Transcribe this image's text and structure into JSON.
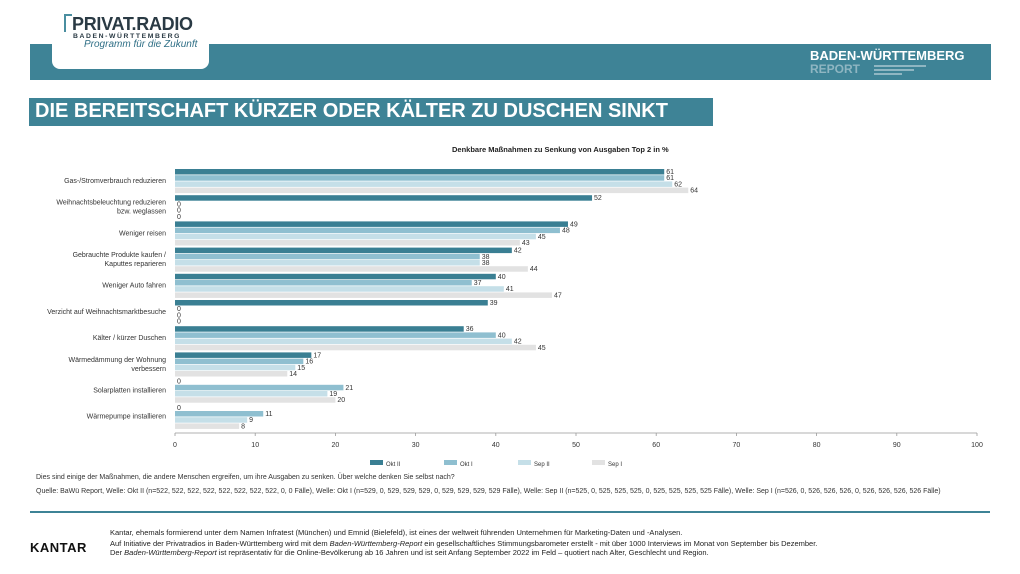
{
  "header": {
    "logo_name": "PRIVAT.RADIO",
    "logo_region": "BADEN-WÜRTTEMBERG",
    "logo_tagline": "Programm für die Zukunft",
    "report_title": "BADEN-WÜRTTEMBERG",
    "report_subtitle": "REPORT",
    "band_color": "#3e8396"
  },
  "headline": "DIE BEREITSCHAFT KÜRZER ODER KÄLTER ZU DUSCHEN SINKT",
  "chart_data": {
    "type": "bar",
    "orientation": "horizontal",
    "title": "Denkbare Maßnahmen zu Senkung von Ausgaben Top 2 in %",
    "categories": [
      "Gas-/Stromverbrauch reduzieren",
      "Weihnachtsbeleuchtung reduzieren bzw. weglassen",
      "Weniger reisen",
      "Gebrauchte Produkte kaufen / Kaputtes reparieren",
      "Weniger Auto fahren",
      "Verzicht auf Weihnachtsmarktbesuche",
      "Kälter / kürzer Duschen",
      "Wärmedämmung der Wohnung verbessern",
      "Solarplatten installieren",
      "Wärmepumpe installieren"
    ],
    "category_lines": [
      [
        "Gas-/Stromverbrauch reduzieren"
      ],
      [
        "Weihnachtsbeleuchtung reduzieren",
        "bzw. weglassen"
      ],
      [
        "Weniger reisen"
      ],
      [
        "Gebrauchte Produkte kaufen /",
        "Kaputtes reparieren"
      ],
      [
        "Weniger Auto fahren"
      ],
      [
        "Verzicht auf Weihnachtsmarktbesuche"
      ],
      [
        "Kälter / kürzer Duschen"
      ],
      [
        "Wärmedämmung der Wohnung",
        "verbessern"
      ],
      [
        "Solarplatten installieren"
      ],
      [
        "Wärmepumpe installieren"
      ]
    ],
    "series": [
      {
        "name": "Okt II",
        "color": "#3a7f93",
        "values": [
          61,
          52,
          49,
          42,
          40,
          39,
          36,
          17,
          0,
          0
        ]
      },
      {
        "name": "Okt I",
        "color": "#8fbfd0",
        "values": [
          61,
          0,
          48,
          38,
          37,
          0,
          40,
          16,
          21,
          11
        ]
      },
      {
        "name": "Sep II",
        "color": "#c5dfe8",
        "values": [
          62,
          0,
          45,
          38,
          41,
          0,
          42,
          15,
          19,
          9
        ]
      },
      {
        "name": "Sep I",
        "color": "#e2e2e2",
        "values": [
          64,
          0,
          43,
          44,
          47,
          0,
          45,
          14,
          20,
          8
        ]
      }
    ],
    "xlim": [
      0,
      100
    ],
    "xticks": [
      0,
      10,
      20,
      30,
      40,
      50,
      60,
      70,
      80,
      90,
      100
    ],
    "grid": false,
    "legend_position": "bottom"
  },
  "note": "Dies sind einige der Maßnahmen, die andere Menschen ergreifen, um ihre Ausgaben zu senken. Über welche denken Sie selbst nach?",
  "source": "Quelle: BaWü Report, Welle: Okt II (n=522, 522, 522, 522, 522, 522, 522, 522, 0, 0 Fälle), Welle: Okt I (n=529, 0, 529, 529, 529, 0, 529, 529, 529, 529 Fälle), Welle: Sep II (n=525, 0, 525, 525, 525, 0, 525, 525, 525, 525 Fälle), Welle: Sep I (n=526, 0, 526, 526, 526, 0, 526, 526, 526, 526 Fälle)",
  "footer": {
    "logo": "KANTAR",
    "line1": "Kantar, ehemals formierend unter dem Namen Infratest (München) und Emnid (Bielefeld), ist eines der weltweit führenden Unternehmen für Marketing-Daten und -Analysen.",
    "line2_a": "Auf Initiative der Privatradios in Baden-Württemberg wird mit dem ",
    "line2_b": "Baden-Württemberg-Report",
    "line2_c": " ein gesellschaftliches Stimmungsbarometer erstellt - mit über 1000 Interviews im Monat von September bis Dezember.",
    "line3_a": "Der ",
    "line3_b": "Baden-Württemberg-Report",
    "line3_c": " ist repräsentativ für die Online-Bevölkerung ab 16 Jahren und ist seit Anfang September 2022 im Feld – quotiert nach Alter, Geschlecht und Region."
  }
}
